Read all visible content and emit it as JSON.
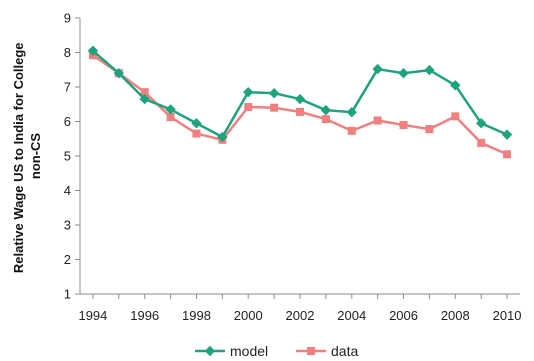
{
  "chart_data": {
    "type": "line",
    "title": "",
    "xlabel": "",
    "ylabel_lines": [
      "Relative Wage US to India for College",
      "non-CS"
    ],
    "x": [
      1994,
      1995,
      1996,
      1997,
      1998,
      1999,
      2000,
      2001,
      2002,
      2003,
      2004,
      2005,
      2006,
      2007,
      2008,
      2009,
      2010
    ],
    "x_ticks": [
      "1994",
      "1996",
      "1998",
      "2000",
      "2002",
      "2004",
      "2006",
      "2008",
      "2010"
    ],
    "x_tick_values": [
      1994,
      1996,
      1998,
      2000,
      2002,
      2004,
      2006,
      2008,
      2010
    ],
    "xlim": [
      1993.5,
      2010.5
    ],
    "y_ticks": [
      "1",
      "2",
      "3",
      "4",
      "5",
      "6",
      "7",
      "8",
      "9"
    ],
    "y_tick_values": [
      1,
      2,
      3,
      4,
      5,
      6,
      7,
      8,
      9
    ],
    "ylim": [
      1,
      9
    ],
    "grid": false,
    "legend_position": "bottom-center",
    "series": [
      {
        "name": "model",
        "color": "#1fa37f",
        "marker": "diamond",
        "values": [
          8.05,
          7.4,
          6.65,
          6.35,
          5.95,
          5.55,
          6.85,
          6.82,
          6.65,
          6.33,
          6.27,
          7.52,
          7.4,
          7.49,
          7.05,
          5.95,
          5.62
        ]
      },
      {
        "name": "data",
        "color": "#f07f7f",
        "marker": "square",
        "values": [
          7.92,
          7.4,
          6.85,
          6.13,
          5.65,
          5.47,
          6.42,
          6.4,
          6.28,
          6.07,
          5.73,
          6.03,
          5.9,
          5.78,
          6.15,
          5.38,
          5.05
        ]
      }
    ]
  }
}
